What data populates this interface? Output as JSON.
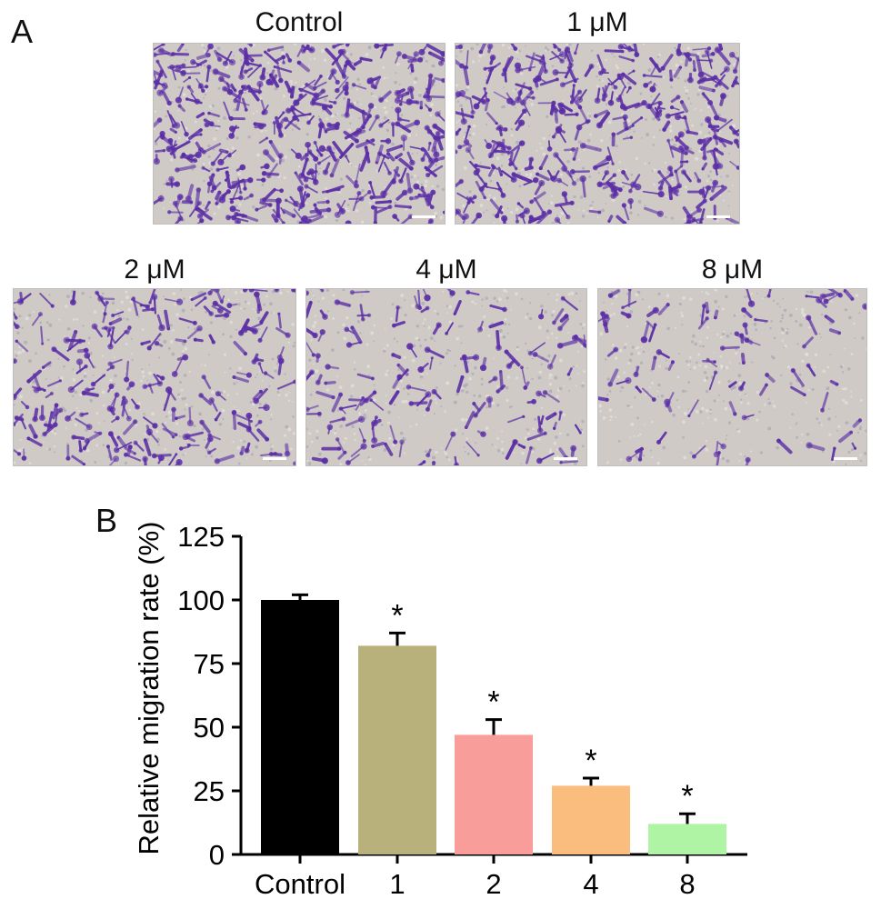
{
  "figure": {
    "panel_a_label": "A",
    "panel_b_label": "B"
  },
  "micrographs": [
    {
      "title": "Control",
      "density": 1.0
    },
    {
      "title": "1 μM",
      "density": 0.82
    },
    {
      "title": "2 μM",
      "density": 0.47
    },
    {
      "title": "4 μM",
      "density": 0.27
    },
    {
      "title": "8 μM",
      "density": 0.12
    }
  ],
  "colors": {
    "stain": "#5b2ea6",
    "membrane": "#cfcac6",
    "scale_bar": "#ffffff"
  },
  "chart_data": {
    "type": "bar",
    "categories": [
      "Control",
      "1",
      "2",
      "4",
      "8"
    ],
    "values": [
      100,
      82,
      47,
      27,
      12
    ],
    "errors": [
      2,
      5,
      6,
      3,
      4
    ],
    "significance": [
      "",
      "*",
      "*",
      "*",
      "*"
    ],
    "colors": [
      "#000000",
      "#b8b17b",
      "#f99d9b",
      "#fbbd7e",
      "#aef4a4"
    ],
    "ylabel": "Relative migration rate (%)",
    "xlabel": "",
    "ylim": [
      0,
      125
    ],
    "yticks": [
      0,
      25,
      50,
      75,
      100,
      125
    ],
    "grid": false
  }
}
